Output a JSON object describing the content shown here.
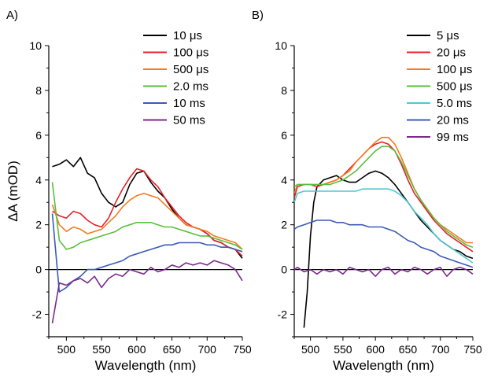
{
  "chart_data": [
    {
      "type": "line",
      "panel_label": "A)",
      "xlabel": "Wavelength (nm)",
      "ylabel": "ΔA (mOD)",
      "xlim": [
        475,
        750
      ],
      "ylim": [
        -3,
        10
      ],
      "xticks": [
        500,
        550,
        600,
        650,
        700,
        750
      ],
      "yticks": [
        -2,
        0,
        2,
        4,
        6,
        8,
        10
      ],
      "zero_line": true,
      "legend_position": "top-right",
      "series": [
        {
          "name": "10 μs",
          "color": "#000000",
          "x": [
            480,
            490,
            500,
            510,
            520,
            530,
            540,
            550,
            560,
            570,
            580,
            590,
            600,
            610,
            620,
            630,
            640,
            650,
            660,
            670,
            680,
            690,
            700,
            710,
            720,
            730,
            740,
            750
          ],
          "y": [
            4.6,
            4.7,
            4.9,
            4.6,
            5.0,
            4.3,
            4.1,
            3.4,
            3.0,
            2.8,
            3.0,
            3.8,
            4.3,
            4.4,
            3.9,
            3.5,
            3.2,
            2.7,
            2.3,
            2.0,
            1.9,
            1.8,
            1.6,
            1.3,
            1.2,
            1.0,
            0.9,
            0.5
          ]
        },
        {
          "name": "100 μs",
          "color": "#e8202a",
          "x": [
            480,
            490,
            500,
            510,
            520,
            530,
            540,
            550,
            560,
            570,
            580,
            590,
            600,
            610,
            620,
            630,
            640,
            650,
            660,
            670,
            680,
            690,
            700,
            710,
            720,
            730,
            740,
            750
          ],
          "y": [
            2.6,
            2.4,
            2.3,
            2.6,
            2.5,
            2.2,
            2.0,
            1.9,
            2.3,
            3.0,
            3.6,
            4.1,
            4.5,
            4.4,
            4.0,
            3.7,
            3.2,
            2.8,
            2.4,
            2.1,
            1.9,
            1.8,
            1.6,
            1.3,
            1.2,
            1.0,
            0.9,
            0.6
          ]
        },
        {
          "name": "500 μs",
          "color": "#f47a20",
          "x": [
            480,
            490,
            500,
            510,
            520,
            530,
            540,
            550,
            560,
            570,
            580,
            590,
            600,
            610,
            620,
            630,
            640,
            650,
            660,
            670,
            680,
            690,
            700,
            710,
            720,
            730,
            740,
            750
          ],
          "y": [
            2.9,
            2.0,
            1.7,
            1.9,
            1.8,
            1.6,
            1.7,
            1.8,
            2.1,
            2.4,
            2.8,
            3.1,
            3.3,
            3.4,
            3.3,
            3.2,
            2.9,
            2.6,
            2.3,
            2.0,
            1.9,
            1.8,
            1.7,
            1.5,
            1.4,
            1.3,
            1.2,
            0.9
          ]
        },
        {
          "name": "2.0 ms",
          "color": "#5bbf3c",
          "x": [
            480,
            490,
            500,
            510,
            520,
            530,
            540,
            550,
            560,
            570,
            580,
            590,
            600,
            610,
            620,
            630,
            640,
            650,
            660,
            670,
            680,
            690,
            700,
            710,
            720,
            730,
            740,
            750
          ],
          "y": [
            3.9,
            1.3,
            0.9,
            1.0,
            1.2,
            1.3,
            1.4,
            1.5,
            1.6,
            1.7,
            1.9,
            2.0,
            2.1,
            2.1,
            2.1,
            2.0,
            1.9,
            1.9,
            1.8,
            1.7,
            1.6,
            1.5,
            1.5,
            1.4,
            1.3,
            1.2,
            1.1,
            0.9
          ]
        },
        {
          "name": "10 ms",
          "color": "#3b5bb5",
          "x": [
            480,
            490,
            500,
            510,
            520,
            530,
            540,
            550,
            560,
            570,
            580,
            590,
            600,
            610,
            620,
            630,
            640,
            650,
            660,
            670,
            680,
            690,
            700,
            710,
            720,
            730,
            740,
            750
          ],
          "y": [
            2.5,
            -1.0,
            -0.8,
            -0.5,
            -0.3,
            0.0,
            0.0,
            0.1,
            0.2,
            0.3,
            0.4,
            0.6,
            0.7,
            0.8,
            0.9,
            1.0,
            1.1,
            1.1,
            1.2,
            1.2,
            1.2,
            1.2,
            1.1,
            1.1,
            1.0,
            1.0,
            0.9,
            0.8
          ]
        },
        {
          "name": "50 ms",
          "color": "#7a2a8c",
          "x": [
            480,
            490,
            500,
            510,
            520,
            530,
            540,
            550,
            560,
            570,
            580,
            590,
            600,
            610,
            620,
            630,
            640,
            650,
            660,
            670,
            680,
            690,
            700,
            710,
            720,
            730,
            740,
            750
          ],
          "y": [
            -2.4,
            -0.6,
            -0.7,
            -0.5,
            -0.4,
            -0.6,
            -0.3,
            -0.8,
            -0.4,
            -0.2,
            -0.3,
            0.0,
            -0.1,
            -0.2,
            0.1,
            -0.1,
            0.0,
            0.2,
            0.1,
            0.3,
            0.2,
            0.3,
            0.2,
            0.4,
            0.3,
            0.2,
            0.0,
            -0.5
          ]
        }
      ]
    },
    {
      "type": "line",
      "panel_label": "B)",
      "xlabel": "Wavelength (nm)",
      "ylabel": "",
      "xlim": [
        475,
        750
      ],
      "ylim": [
        -3,
        10
      ],
      "xticks": [
        500,
        550,
        600,
        650,
        700,
        750
      ],
      "yticks": [
        -2,
        0,
        2,
        4,
        6,
        8,
        10
      ],
      "zero_line": true,
      "legend_position": "top-right",
      "series": [
        {
          "name": "5 μs",
          "color": "#000000",
          "x": [
            490,
            495,
            500,
            505,
            510,
            520,
            530,
            540,
            550,
            560,
            570,
            580,
            590,
            600,
            610,
            620,
            630,
            640,
            650,
            660,
            670,
            680,
            690,
            700,
            710,
            720,
            730,
            740,
            750
          ],
          "y": [
            -2.6,
            -1.0,
            1.5,
            3.0,
            3.7,
            4.0,
            4.1,
            4.2,
            4.0,
            3.9,
            3.9,
            4.1,
            4.3,
            4.4,
            4.3,
            4.1,
            3.8,
            3.4,
            3.0,
            2.6,
            2.2,
            1.9,
            1.6,
            1.3,
            1.1,
            0.9,
            0.8,
            0.6,
            0.5
          ]
        },
        {
          "name": "20 μs",
          "color": "#e8202a",
          "x": [
            475,
            480,
            490,
            500,
            510,
            520,
            530,
            540,
            550,
            560,
            570,
            580,
            590,
            600,
            610,
            620,
            630,
            640,
            650,
            660,
            670,
            680,
            690,
            700,
            710,
            720,
            730,
            740,
            750
          ],
          "y": [
            3.2,
            3.7,
            3.8,
            3.8,
            3.7,
            3.8,
            3.9,
            4.0,
            4.2,
            4.5,
            4.8,
            5.1,
            5.4,
            5.6,
            5.7,
            5.6,
            5.3,
            4.7,
            4.0,
            3.4,
            3.0,
            2.6,
            2.2,
            1.9,
            1.6,
            1.4,
            1.2,
            1.0,
            0.8
          ]
        },
        {
          "name": "100 μs",
          "color": "#f47a20",
          "x": [
            475,
            480,
            490,
            500,
            510,
            520,
            530,
            540,
            550,
            560,
            570,
            580,
            590,
            600,
            610,
            620,
            630,
            640,
            650,
            660,
            670,
            680,
            690,
            700,
            710,
            720,
            730,
            740,
            750
          ],
          "y": [
            3.4,
            3.8,
            3.8,
            3.8,
            3.8,
            3.8,
            3.9,
            4.0,
            4.2,
            4.4,
            4.8,
            5.1,
            5.4,
            5.7,
            5.9,
            5.9,
            5.6,
            5.0,
            4.3,
            3.6,
            3.1,
            2.7,
            2.3,
            2.0,
            1.8,
            1.6,
            1.4,
            1.2,
            1.2
          ]
        },
        {
          "name": "500 μs",
          "color": "#5bbf3c",
          "x": [
            475,
            480,
            490,
            500,
            510,
            520,
            530,
            540,
            550,
            560,
            570,
            580,
            590,
            600,
            610,
            620,
            630,
            640,
            650,
            660,
            670,
            680,
            690,
            700,
            710,
            720,
            730,
            740,
            750
          ],
          "y": [
            3.7,
            3.8,
            3.8,
            3.8,
            3.8,
            3.8,
            3.8,
            3.9,
            4.0,
            4.2,
            4.4,
            4.7,
            5.0,
            5.3,
            5.5,
            5.5,
            5.3,
            4.8,
            4.2,
            3.6,
            3.1,
            2.7,
            2.3,
            2.0,
            1.7,
            1.5,
            1.3,
            1.1,
            1.0
          ]
        },
        {
          "name": "5.0 ms",
          "color": "#4fc8d0",
          "x": [
            475,
            480,
            490,
            500,
            510,
            520,
            530,
            540,
            550,
            560,
            570,
            580,
            590,
            600,
            610,
            620,
            630,
            640,
            650,
            660,
            670,
            680,
            690,
            700,
            710,
            720,
            730,
            740,
            750
          ],
          "y": [
            3.0,
            3.4,
            3.5,
            3.5,
            3.5,
            3.5,
            3.5,
            3.5,
            3.5,
            3.5,
            3.5,
            3.6,
            3.6,
            3.6,
            3.6,
            3.6,
            3.5,
            3.3,
            3.0,
            2.6,
            2.3,
            2.0,
            1.6,
            1.3,
            1.1,
            0.9,
            0.7,
            0.5,
            0.3
          ]
        },
        {
          "name": "20 ms",
          "color": "#3b5bb5",
          "x": [
            475,
            480,
            490,
            500,
            510,
            520,
            530,
            540,
            550,
            560,
            570,
            580,
            590,
            600,
            610,
            620,
            630,
            640,
            650,
            660,
            670,
            680,
            690,
            700,
            710,
            720,
            730,
            740,
            750
          ],
          "y": [
            1.8,
            1.9,
            2.0,
            2.1,
            2.2,
            2.2,
            2.2,
            2.1,
            2.1,
            2.0,
            2.0,
            2.0,
            1.9,
            1.9,
            1.9,
            1.8,
            1.7,
            1.5,
            1.3,
            1.2,
            1.0,
            0.9,
            0.8,
            0.6,
            0.5,
            0.4,
            0.3,
            0.2,
            0.1
          ]
        },
        {
          "name": "99 ms",
          "color": "#7a2a8c",
          "x": [
            475,
            480,
            490,
            500,
            510,
            520,
            530,
            540,
            550,
            560,
            570,
            580,
            590,
            600,
            610,
            620,
            630,
            640,
            650,
            660,
            670,
            680,
            690,
            700,
            710,
            720,
            730,
            740,
            750
          ],
          "y": [
            0.0,
            0.1,
            -0.1,
            0.0,
            -0.2,
            0.0,
            -0.1,
            0.0,
            -0.2,
            0.1,
            0.0,
            -0.1,
            0.0,
            -0.3,
            0.0,
            0.1,
            -0.2,
            0.0,
            -0.1,
            0.1,
            0.0,
            -0.2,
            0.0,
            0.1,
            -0.3,
            0.0,
            0.1,
            0.0,
            -0.2
          ]
        }
      ]
    }
  ]
}
